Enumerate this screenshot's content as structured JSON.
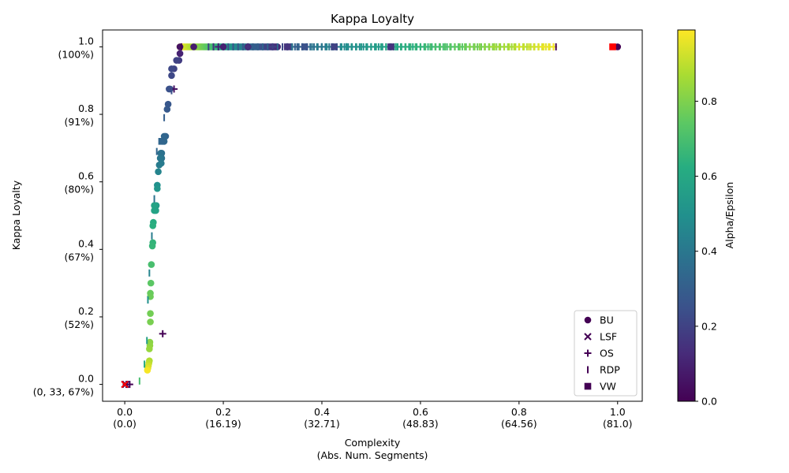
{
  "chart_data": {
    "type": "scatter",
    "title": "Kappa Loyalty",
    "xlabel_line1": "Complexity",
    "xlabel_line2": "(Abs. Num. Segments)",
    "ylabel": "Kappa Loyalty",
    "colorbar_label": "Alpha/Epsilon",
    "xlim": [
      -0.045,
      1.05
    ],
    "ylim": [
      -0.05,
      1.05
    ],
    "x_ticks": [
      {
        "value": 0.0,
        "label": "0.0",
        "sub": "(0.0)"
      },
      {
        "value": 0.2,
        "label": "0.2",
        "sub": "(16.19)"
      },
      {
        "value": 0.4,
        "label": "0.4",
        "sub": "(32.71)"
      },
      {
        "value": 0.6,
        "label": "0.6",
        "sub": "(48.83)"
      },
      {
        "value": 0.8,
        "label": "0.8",
        "sub": "(64.56)"
      },
      {
        "value": 1.0,
        "label": "1.0",
        "sub": "(81.0)"
      }
    ],
    "y_ticks": [
      {
        "value": 0.0,
        "label": "0.0",
        "sub": "(0, 33, 67%)"
      },
      {
        "value": 0.2,
        "label": "0.2",
        "sub": "(52%)"
      },
      {
        "value": 0.4,
        "label": "0.4",
        "sub": "(67%)"
      },
      {
        "value": 0.6,
        "label": "0.6",
        "sub": "(80%)"
      },
      {
        "value": 0.8,
        "label": "0.8",
        "sub": "(91%)"
      },
      {
        "value": 1.0,
        "label": "1.0",
        "sub": "(100%)"
      }
    ],
    "colorbar_ticks": [
      {
        "value": 0.0,
        "label": "0.0"
      },
      {
        "value": 0.2,
        "label": "0.2"
      },
      {
        "value": 0.4,
        "label": "0.4"
      },
      {
        "value": 0.6,
        "label": "0.6"
      },
      {
        "value": 0.8,
        "label": "0.8"
      }
    ],
    "colorbar_range": [
      0.0,
      0.99
    ],
    "colormap": "viridis",
    "legend_position": "lower right",
    "legend": [
      {
        "name": "BU",
        "marker": "circle"
      },
      {
        "name": "LSF",
        "marker": "x"
      },
      {
        "name": "OS",
        "marker": "plus"
      },
      {
        "name": "RDP",
        "marker": "vline"
      },
      {
        "name": "VW",
        "marker": "square"
      }
    ],
    "highlight_color": "#ff0000",
    "series": [
      {
        "name": "BU",
        "marker": "circle",
        "points": [
          [
            1.0,
            1.0,
            0.0
          ],
          [
            0.112,
            1.0,
            0.05
          ],
          [
            0.14,
            1.0,
            0.08
          ],
          [
            0.2,
            1.0,
            0.1
          ],
          [
            0.25,
            1.0,
            0.12
          ],
          [
            0.3,
            1.0,
            0.15
          ],
          [
            0.112,
            0.98,
            0.1
          ],
          [
            0.11,
            0.96,
            0.18
          ],
          [
            0.105,
            0.96,
            0.2
          ],
          [
            0.1,
            0.935,
            0.2
          ],
          [
            0.095,
            0.935,
            0.22
          ],
          [
            0.095,
            0.915,
            0.22
          ],
          [
            0.092,
            0.875,
            0.24
          ],
          [
            0.09,
            0.875,
            0.25
          ],
          [
            0.088,
            0.83,
            0.27
          ],
          [
            0.086,
            0.815,
            0.28
          ],
          [
            0.083,
            0.735,
            0.32
          ],
          [
            0.08,
            0.735,
            0.33
          ],
          [
            0.08,
            0.72,
            0.34
          ],
          [
            0.077,
            0.72,
            0.35
          ],
          [
            0.075,
            0.685,
            0.37
          ],
          [
            0.073,
            0.685,
            0.38
          ],
          [
            0.075,
            0.67,
            0.38
          ],
          [
            0.072,
            0.67,
            0.4
          ],
          [
            0.074,
            0.655,
            0.41
          ],
          [
            0.07,
            0.65,
            0.42
          ],
          [
            0.068,
            0.63,
            0.45
          ],
          [
            0.066,
            0.59,
            0.5
          ],
          [
            0.066,
            0.58,
            0.52
          ],
          [
            0.064,
            0.53,
            0.55
          ],
          [
            0.063,
            0.515,
            0.57
          ],
          [
            0.06,
            0.515,
            0.58
          ],
          [
            0.06,
            0.53,
            0.58
          ],
          [
            0.058,
            0.48,
            0.62
          ],
          [
            0.057,
            0.47,
            0.63
          ],
          [
            0.057,
            0.42,
            0.65
          ],
          [
            0.056,
            0.41,
            0.66
          ],
          [
            0.054,
            0.355,
            0.7
          ],
          [
            0.053,
            0.3,
            0.74
          ],
          [
            0.052,
            0.27,
            0.76
          ],
          [
            0.052,
            0.26,
            0.77
          ],
          [
            0.052,
            0.21,
            0.78
          ],
          [
            0.052,
            0.185,
            0.79
          ],
          [
            0.051,
            0.125,
            0.82
          ],
          [
            0.051,
            0.115,
            0.83
          ],
          [
            0.05,
            0.105,
            0.84
          ],
          [
            0.05,
            0.07,
            0.88
          ],
          [
            0.049,
            0.063,
            0.9
          ],
          [
            0.048,
            0.055,
            0.93
          ],
          [
            0.047,
            0.048,
            0.95
          ],
          [
            0.046,
            0.042,
            0.98
          ]
        ]
      },
      {
        "name": "LSF",
        "marker": "x",
        "points": [
          [
            0.0,
            0.0,
            0.0
          ],
          [
            0.002,
            0.0,
            0.0
          ]
        ]
      },
      {
        "name": "OS",
        "marker": "plus",
        "points": [
          [
            0.003,
            0.0,
            0.0
          ],
          [
            0.01,
            0.0,
            0.0
          ],
          [
            0.077,
            0.15,
            0.0
          ],
          [
            0.1,
            0.875,
            0.05
          ],
          [
            0.19,
            1.0,
            0.1
          ],
          [
            0.25,
            1.0,
            0.15
          ],
          [
            0.3,
            1.0,
            0.2
          ],
          [
            0.35,
            1.0,
            0.3
          ],
          [
            0.4,
            1.0,
            0.4
          ],
          [
            0.45,
            1.0,
            0.5
          ],
          [
            0.5,
            1.0,
            0.55
          ],
          [
            0.55,
            1.0,
            0.6
          ],
          [
            0.6,
            1.0,
            0.65
          ],
          [
            0.65,
            1.0,
            0.72
          ],
          [
            0.7,
            1.0,
            0.8
          ],
          [
            0.75,
            1.0,
            0.87
          ],
          [
            0.8,
            1.0,
            0.93
          ],
          [
            0.85,
            1.0,
            0.97
          ]
        ]
      },
      {
        "name": "RDP",
        "marker": "vline",
        "points": [
          [
            0.03,
            0.01,
            0.7
          ],
          [
            0.04,
            0.06,
            0.6
          ],
          [
            0.045,
            0.13,
            0.55
          ],
          [
            0.047,
            0.25,
            0.5
          ],
          [
            0.05,
            0.33,
            0.45
          ],
          [
            0.055,
            0.44,
            0.42
          ],
          [
            0.06,
            0.55,
            0.38
          ],
          [
            0.065,
            0.69,
            0.33
          ],
          [
            0.08,
            0.79,
            0.3
          ],
          [
            0.095,
            0.87,
            0.25
          ],
          [
            0.115,
            1.0,
            0.0
          ],
          [
            0.18,
            1.0,
            0.15
          ],
          [
            0.32,
            1.0,
            0.22
          ],
          [
            0.38,
            1.0,
            0.4
          ],
          [
            0.45,
            1.0,
            0.5
          ],
          [
            0.55,
            1.0,
            0.6
          ],
          [
            0.65,
            1.0,
            0.72
          ],
          [
            0.75,
            1.0,
            0.85
          ],
          [
            0.875,
            1.0,
            0.0
          ]
        ]
      },
      {
        "name": "VW",
        "marker": "square",
        "points": [
          [
            0.075,
            0.72,
            0.33
          ],
          [
            0.33,
            1.0,
            0.15
          ],
          [
            0.365,
            1.0,
            0.25
          ],
          [
            0.425,
            1.0,
            0.2
          ],
          [
            0.54,
            1.0,
            0.15
          ]
        ]
      }
    ],
    "trails": [
      {
        "name": "BU",
        "x_from": 0.112,
        "x_to": 0.31,
        "y": 1.0,
        "c_from": 0.99,
        "c_to": 0.12,
        "marker": "circle"
      },
      {
        "name": "OS",
        "x_from": 0.33,
        "x_to": 0.87,
        "y": 1.0,
        "c_from": 0.3,
        "c_to": 0.96,
        "marker": "plus"
      },
      {
        "name": "RDP",
        "x_from": 0.17,
        "x_to": 0.87,
        "y": 1.0,
        "c_from": 0.2,
        "c_to": 0.98,
        "marker": "vline"
      }
    ],
    "red_markers": [
      {
        "x": 0.0,
        "y": 0.0,
        "marker": "x"
      },
      {
        "x": 0.99,
        "y": 1.0,
        "marker": "square"
      }
    ]
  }
}
